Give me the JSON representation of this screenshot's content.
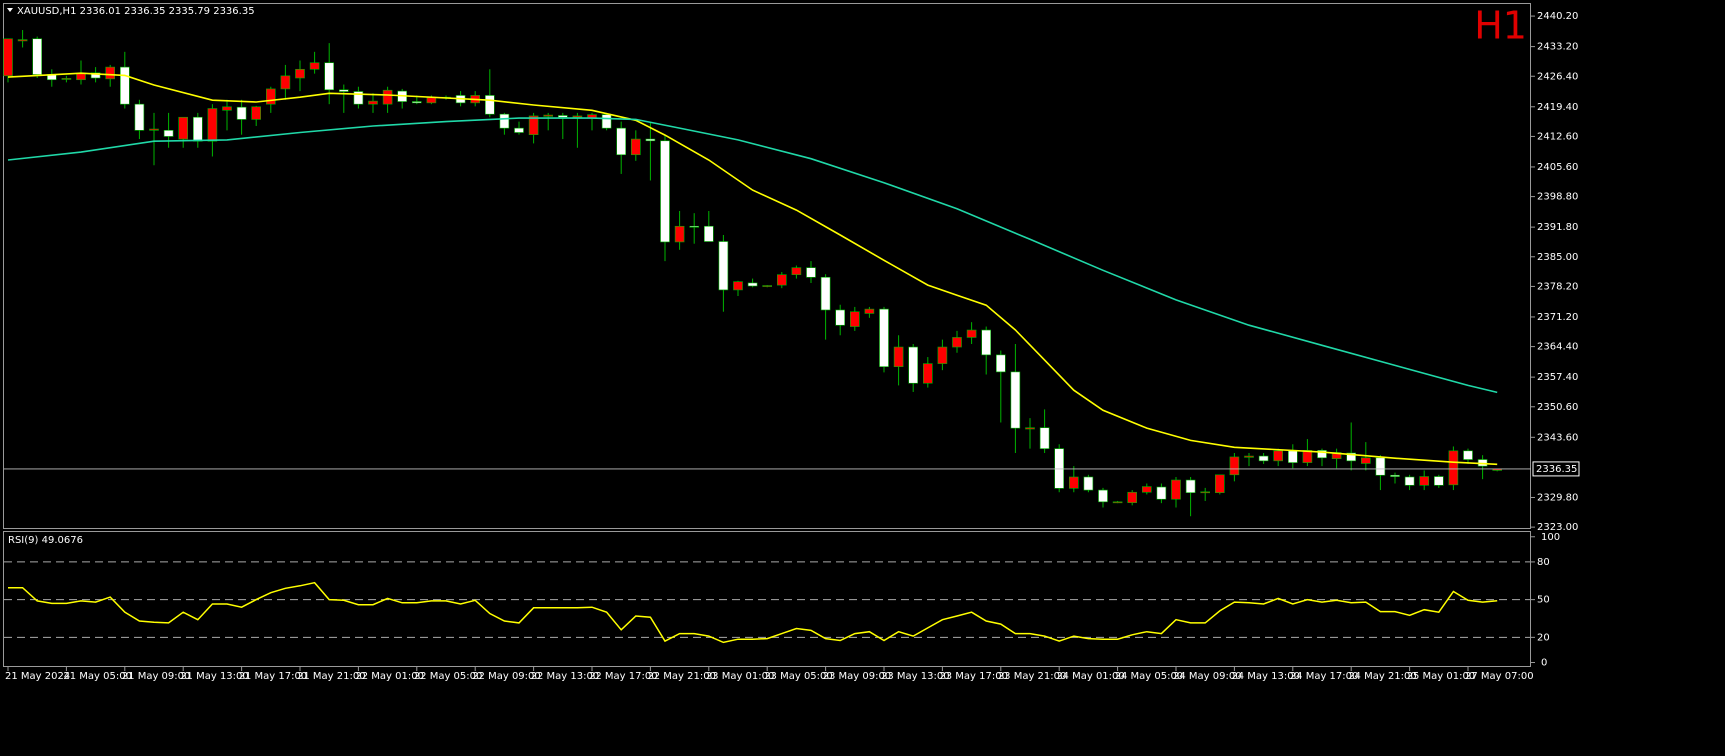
{
  "chart_data": {
    "type": "candlestick",
    "header": "XAUUSD,H1  2336.01 2336.35 2335.79 2336.35",
    "timeframe_label": "H1",
    "categories": [
      "21 May 2024",
      null,
      null,
      null,
      "21 May 05:00",
      null,
      null,
      null,
      "21 May 09:00",
      null,
      null,
      null,
      "21 May 13:00",
      null,
      null,
      null,
      "21 May 17:00",
      null,
      null,
      null,
      "21 May 21:00",
      null,
      null,
      null,
      "22 May 01:00",
      null,
      null,
      null,
      "22 May 05:00",
      null,
      null,
      null,
      "22 May 09:00",
      null,
      null,
      null,
      "22 May 13:00",
      null,
      null,
      null,
      "22 May 17:00",
      null,
      null,
      null,
      "22 May 21:00",
      null,
      null,
      null,
      "23 May 01:00",
      null,
      null,
      null,
      "23 May 05:00",
      null,
      null,
      null,
      "23 May 09:00",
      null,
      null,
      null,
      "23 May 13:00",
      null,
      null,
      null,
      "23 May 17:00",
      null,
      null,
      null,
      "23 May 21:00",
      null,
      null,
      null,
      "24 May 01:00",
      null,
      null,
      null,
      "24 May 05:00",
      null,
      null,
      null,
      "24 May 09:00",
      null,
      null,
      null,
      "24 May 13:00",
      null,
      null,
      null,
      "24 May 17:00",
      null,
      null,
      null,
      "24 May 21:00",
      null,
      null,
      null,
      "25 May 01:00",
      null,
      null,
      null,
      "27 May 07:00",
      null,
      null
    ],
    "open": [
      2426.5,
      2434.5,
      2435,
      2426.8,
      2425.8,
      2425.6,
      2427.2,
      2425.8,
      2428.5,
      2420,
      2414,
      2414,
      2412,
      2417,
      2411.5,
      2418.6,
      2419.3,
      2416.5,
      2420,
      2423.5,
      2426,
      2428,
      2429.5,
      2423.3,
      2422.9,
      2420,
      2420,
      2423,
      2420.6,
      2420.3,
      2421.5,
      2422,
      2420.3,
      2422,
      2417.7,
      2414.5,
      2413,
      2417.2,
      2417.4,
      2417,
      2416.8,
      2417.6,
      2414.5,
      2408.4,
      2412,
      2411.6,
      2388.4,
      2392,
      2392,
      2388.5,
      2377.4,
      2379,
      2378.3,
      2378.5,
      2380.9,
      2382.5,
      2380.3,
      2372.8,
      2369,
      2372,
      2373,
      2359.8,
      2364.3,
      2356,
      2360.5,
      2364.3,
      2366.5,
      2368.2,
      2362.5,
      2358.6,
      2345.5,
      2345.8,
      2341,
      2331.9,
      2334.5,
      2331.5,
      2328.8,
      2328.6,
      2331,
      2332.2,
      2329.4,
      2333.8,
      2330.9,
      2330.9,
      2335,
      2339,
      2339.3,
      2338.2,
      2340.5,
      2337.8,
      2340.6,
      2338.7,
      2340,
      2337.6,
      2338.9,
      2334.9,
      2334.5,
      2332.6,
      2334.6,
      2332.7,
      2340.5,
      2338.5,
      2336.01
    ],
    "high": [
      2435,
      2437,
      2435.5,
      2428,
      2426.5,
      2430,
      2428.5,
      2429,
      2432,
      2421,
      2418,
      2418,
      2417,
      2418,
      2420,
      2421,
      2421,
      2419.6,
      2424,
      2429,
      2430,
      2432,
      2434,
      2424.5,
      2424,
      2422.5,
      2424,
      2423.5,
      2422,
      2422,
      2422,
      2423,
      2423,
      2428,
      2418,
      2416,
      2418,
      2418,
      2418,
      2418,
      2418,
      2418,
      2416,
      2414,
      2416,
      2413,
      2395.5,
      2395,
      2395.5,
      2390,
      2379.5,
      2380,
      2378.5,
      2381.5,
      2383,
      2384,
      2381,
      2374,
      2373.5,
      2373.5,
      2373.5,
      2367,
      2365,
      2362,
      2366,
      2368,
      2370,
      2369,
      2363.5,
      2365,
      2348,
      2350,
      2342,
      2337,
      2335,
      2332,
      2329,
      2331.5,
      2333,
      2333,
      2334.5,
      2334.5,
      2332,
      2335,
      2340,
      2340,
      2340,
      2341,
      2342,
      2343.2,
      2341,
      2341,
      2347,
      2342.5,
      2339.5,
      2335.5,
      2335,
      2336,
      2335,
      2341.5,
      2341,
      2339.5,
      2336.35
    ],
    "low": [
      2425,
      2433,
      2426,
      2424,
      2425,
      2424.5,
      2425,
      2424,
      2419,
      2412,
      2406,
      2410,
      2410,
      2410,
      2408,
      2414,
      2413,
      2415,
      2418,
      2421,
      2423,
      2427,
      2420,
      2418,
      2419,
      2418,
      2418,
      2419,
      2420,
      2420,
      2421,
      2419.5,
      2419.5,
      2417,
      2413,
      2413,
      2411,
      2414,
      2412,
      2410,
      2414,
      2414,
      2404,
      2407,
      2402.5,
      2384,
      2386.6,
      2388,
      2389,
      2372.4,
      2376,
      2378,
      2378,
      2377.8,
      2380,
      2379,
      2366,
      2367,
      2368,
      2371,
      2358.5,
      2355.5,
      2354,
      2355,
      2359,
      2363,
      2365,
      2358,
      2347,
      2340,
      2341,
      2340,
      2331,
      2331,
      2331,
      2327.5,
      2328.5,
      2328,
      2330.5,
      2328.5,
      2327.5,
      2325.5,
      2329,
      2330.5,
      2333.5,
      2337,
      2337.5,
      2337,
      2336.5,
      2337,
      2337,
      2336.5,
      2336,
      2336,
      2331.5,
      2333,
      2331.5,
      2331.5,
      2332,
      2331.5,
      2337.5,
      2334,
      2335.79
    ],
    "close": [
      2435,
      2434.8,
      2426.8,
      2425.6,
      2425.9,
      2427,
      2426,
      2428.5,
      2420,
      2414,
      2414.3,
      2412.6,
      2417,
      2411.5,
      2419,
      2419.4,
      2416.5,
      2419.4,
      2423.5,
      2426.5,
      2428,
      2429.5,
      2423.3,
      2422.9,
      2420,
      2420.7,
      2423.2,
      2420.6,
      2420.3,
      2421.5,
      2421.6,
      2420.3,
      2422,
      2417.7,
      2414.5,
      2413.5,
      2417.3,
      2417.5,
      2417,
      2417.3,
      2417.6,
      2414.5,
      2408.4,
      2412,
      2411.6,
      2388.4,
      2392,
      2391.8,
      2388.5,
      2377.4,
      2379.3,
      2378.3,
      2378.4,
      2380.9,
      2382.5,
      2380.3,
      2372.8,
      2369.3,
      2372.4,
      2373,
      2359.8,
      2364.3,
      2356,
      2360.5,
      2364.3,
      2366.5,
      2368.2,
      2362.5,
      2358.6,
      2345.7,
      2345.8,
      2341,
      2331.9,
      2334.5,
      2331.5,
      2328.8,
      2328.8,
      2331,
      2332.3,
      2329.4,
      2333.8,
      2330.9,
      2331.1,
      2335,
      2339.1,
      2339.3,
      2338.2,
      2340.5,
      2337.8,
      2340.6,
      2338.9,
      2340.1,
      2338.2,
      2338.9,
      2334.9,
      2334.6,
      2332.6,
      2334.6,
      2332.6,
      2340.5,
      2338.5,
      2337,
      2336.35
    ],
    "bull_color": "#ff0000",
    "bear_color": "#ffffff",
    "wick_color": "#00b400",
    "ylim": [
      2322.8,
      2443.2
    ],
    "yticks": [
      {
        "value": 2440.2,
        "label": "2440.20"
      },
      {
        "value": 2433.2,
        "label": "2433.20"
      },
      {
        "value": 2426.4,
        "label": "2426.40"
      },
      {
        "value": 2419.4,
        "label": "2419.40"
      },
      {
        "value": 2412.6,
        "label": "2412.60"
      },
      {
        "value": 2405.6,
        "label": "2405.60"
      },
      {
        "value": 2398.8,
        "label": "2398.80"
      },
      {
        "value": 2391.8,
        "label": "2391.80"
      },
      {
        "value": 2385,
        "label": "2385.00"
      },
      {
        "value": 2378.2,
        "label": "2378.20"
      },
      {
        "value": 2371.2,
        "label": "2371.20"
      },
      {
        "value": 2364.4,
        "label": "2364.40"
      },
      {
        "value": 2357.4,
        "label": "2357.40"
      },
      {
        "value": 2350.6,
        "label": "2350.60"
      },
      {
        "value": 2343.6,
        "label": "2343.60"
      },
      {
        "value": 2329.8,
        "label": "2329.80"
      },
      {
        "value": 2323,
        "label": "2323.00"
      }
    ],
    "moving_averages": [
      {
        "color": "#ffff00",
        "x": [
          0,
          5,
          8,
          10,
          14,
          17,
          20,
          22,
          26,
          33,
          36,
          40,
          43,
          45,
          48,
          51,
          54,
          57,
          60,
          63,
          65,
          67,
          69,
          71,
          73,
          75,
          78,
          81,
          84,
          90,
          95,
          99,
          102
        ],
        "values": [
          2426.2,
          2427.1,
          2426.6,
          2424.4,
          2420.9,
          2420.5,
          2421.6,
          2422.5,
          2422.1,
          2420.9,
          2419.8,
          2418.6,
          2416.3,
          2412.9,
          2407.2,
          2400.3,
          2395.7,
          2390,
          2384.2,
          2378.5,
          2376.2,
          2373.9,
          2368.2,
          2361.3,
          2354.4,
          2349.8,
          2345.7,
          2342.9,
          2341.3,
          2340.2,
          2338.8,
          2337.9,
          2337.4
        ]
      },
      {
        "color": "#20d8a8",
        "x": [
          0,
          5,
          10,
          15,
          20,
          25,
          30,
          35,
          40,
          43,
          46,
          50,
          55,
          60,
          65,
          70,
          75,
          80,
          85,
          90,
          95,
          100,
          102
        ],
        "values": [
          2407.2,
          2409,
          2411.5,
          2411.8,
          2413.5,
          2415,
          2416,
          2416.8,
          2416.8,
          2416.5,
          2414.5,
          2411.8,
          2407.5,
          2402,
          2396,
          2389,
          2381.9,
          2375.1,
          2369.3,
          2364.7,
          2360.1,
          2355.5,
          2353.9
        ]
      }
    ],
    "rsi": {
      "label": "RSI(9) 49.0676",
      "color": "#ffff00",
      "ylim": [
        -2,
        103
      ],
      "yticks": [
        0,
        20,
        50,
        80,
        100
      ],
      "values": [
        59.5,
        59.5,
        49,
        47,
        47,
        49,
        48,
        52,
        40,
        33,
        32,
        31.5,
        40,
        34,
        46.5,
        46.5,
        44,
        50,
        55.5,
        59,
        61,
        63.5,
        50,
        49.5,
        46,
        46,
        51,
        47.5,
        47.5,
        49,
        49,
        46.5,
        49.5,
        39,
        33,
        31.5,
        43.5,
        43.5,
        43.5,
        43.5,
        44,
        40,
        26,
        37,
        36,
        17,
        23,
        23,
        21,
        16,
        18.5,
        18.5,
        19,
        23,
        27,
        25.5,
        19,
        17.5,
        23,
        24.5,
        17.5,
        24.5,
        21,
        27.5,
        34,
        37,
        40,
        33,
        30.5,
        23,
        23,
        21,
        17,
        21,
        19,
        18.5,
        18.5,
        22,
        24.5,
        23,
        34,
        31.5,
        31.5,
        41,
        48,
        47.5,
        46.5,
        51,
        46.5,
        50,
        48,
        49.5,
        47.5,
        48,
        40.5,
        40.5,
        37.5,
        42,
        40,
        56.5,
        49.5,
        48,
        49.0676
      ]
    }
  }
}
